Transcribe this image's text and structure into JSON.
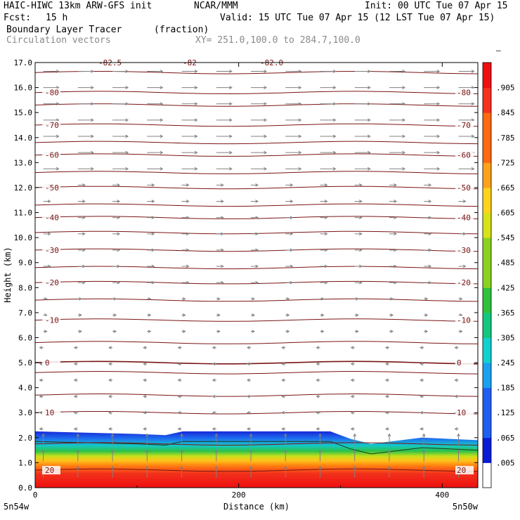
{
  "header": {
    "model": "HAIC-HIWC 13km ARW-GFS init",
    "org": "NCAR/MMM",
    "init": "Init: 00 UTC Tue 07 Apr 15",
    "fcst_label": "Fcst:",
    "fcst_value": "15 h",
    "valid": "Valid: 15 UTC Tue 07 Apr 15 (12 LST Tue 07 Apr 15)",
    "field_name": "Boundary Layer Tracer",
    "field_units": "(fraction)",
    "vectors_label": "Circulation vectors",
    "xy_range": "XY= 251.0,100.0 to 284.7,100.0"
  },
  "colors": {
    "contour": "#7a1414",
    "vectors": "#808080",
    "tracer_scale": [
      "#ffffff",
      "#0a1bd6",
      "#1e5ff2",
      "#1aa0f0",
      "#10d0d0",
      "#12c880",
      "#2fc23c",
      "#8ad21f",
      "#d8e21a",
      "#ffd31a",
      "#ffa21a",
      "#ff6a10",
      "#f5301e",
      "#ee1010"
    ]
  },
  "chart_data": {
    "type": "heatmap",
    "title": "Boundary Layer Tracer",
    "xlabel": "Distance (km)",
    "ylabel": "Height (km)",
    "xlim": [
      0,
      435
    ],
    "ylim": [
      0,
      17
    ],
    "x_ticks": [
      "0",
      "200",
      "400"
    ],
    "x_tick_values": [
      0,
      200,
      400
    ],
    "y_ticks": [
      "0.0",
      "1.0",
      "2.0",
      "3.0",
      "4.0",
      "5.0",
      "6.0",
      "7.0",
      "8.0",
      "9.0",
      "10.0",
      "11.0",
      "12.0",
      "13.0",
      "14.0",
      "15.0",
      "16.0",
      "17.0"
    ],
    "x_endpoints": [
      "5n54w",
      "5n50w"
    ],
    "colorbar_labels": [
      ".005",
      ".065",
      ".125",
      ".185",
      ".245",
      ".305",
      ".365",
      ".425",
      ".485",
      ".545",
      ".605",
      ".665",
      ".725",
      ".785",
      ".845",
      ".905",
      "–"
    ],
    "colorbar_levels": [
      0.005,
      0.065,
      0.125,
      0.185,
      0.245,
      0.305,
      0.365,
      0.425,
      0.485,
      0.545,
      0.605,
      0.665,
      0.725,
      0.785,
      0.845,
      0.905
    ],
    "boundary_layer_top_km": [
      {
        "x": 0,
        "y": 2.25
      },
      {
        "x": 100,
        "y": 2.15
      },
      {
        "x": 128,
        "y": 2.1
      },
      {
        "x": 145,
        "y": 2.25
      },
      {
        "x": 290,
        "y": 2.25
      },
      {
        "x": 310,
        "y": 1.95
      },
      {
        "x": 330,
        "y": 1.75
      },
      {
        "x": 380,
        "y": 2.0
      },
      {
        "x": 435,
        "y": 1.9
      }
    ],
    "temperature_contours_C": [
      {
        "label": "20",
        "level": 20,
        "y": 0.7
      },
      {
        "label": "10",
        "level": 10,
        "y": 3.0
      },
      {
        "label": "0",
        "level": 0,
        "y": 5.0
      },
      {
        "label": "-10",
        "level": -10,
        "y": 6.7
      },
      {
        "label": "-20",
        "level": -20,
        "y": 8.2
      },
      {
        "label": "-30",
        "level": -30,
        "y": 9.5
      },
      {
        "label": "-40",
        "level": -40,
        "y": 10.8
      },
      {
        "label": "-50",
        "level": -50,
        "y": 12.0
      },
      {
        "label": "-60",
        "level": -60,
        "y": 13.3
      },
      {
        "label": "-70",
        "level": -70,
        "y": 14.5
      },
      {
        "label": "-80",
        "level": -80,
        "y": 15.8
      }
    ],
    "top_labels": [
      "-82.5",
      "-82",
      "-82.0"
    ],
    "other_contours_km": [
      1.75,
      3.7,
      4.6,
      5.8,
      7.5,
      8.8,
      10.2,
      11.3,
      12.6,
      13.8,
      15.3,
      16.6
    ],
    "grid": false,
    "legend": "right colorbar"
  }
}
